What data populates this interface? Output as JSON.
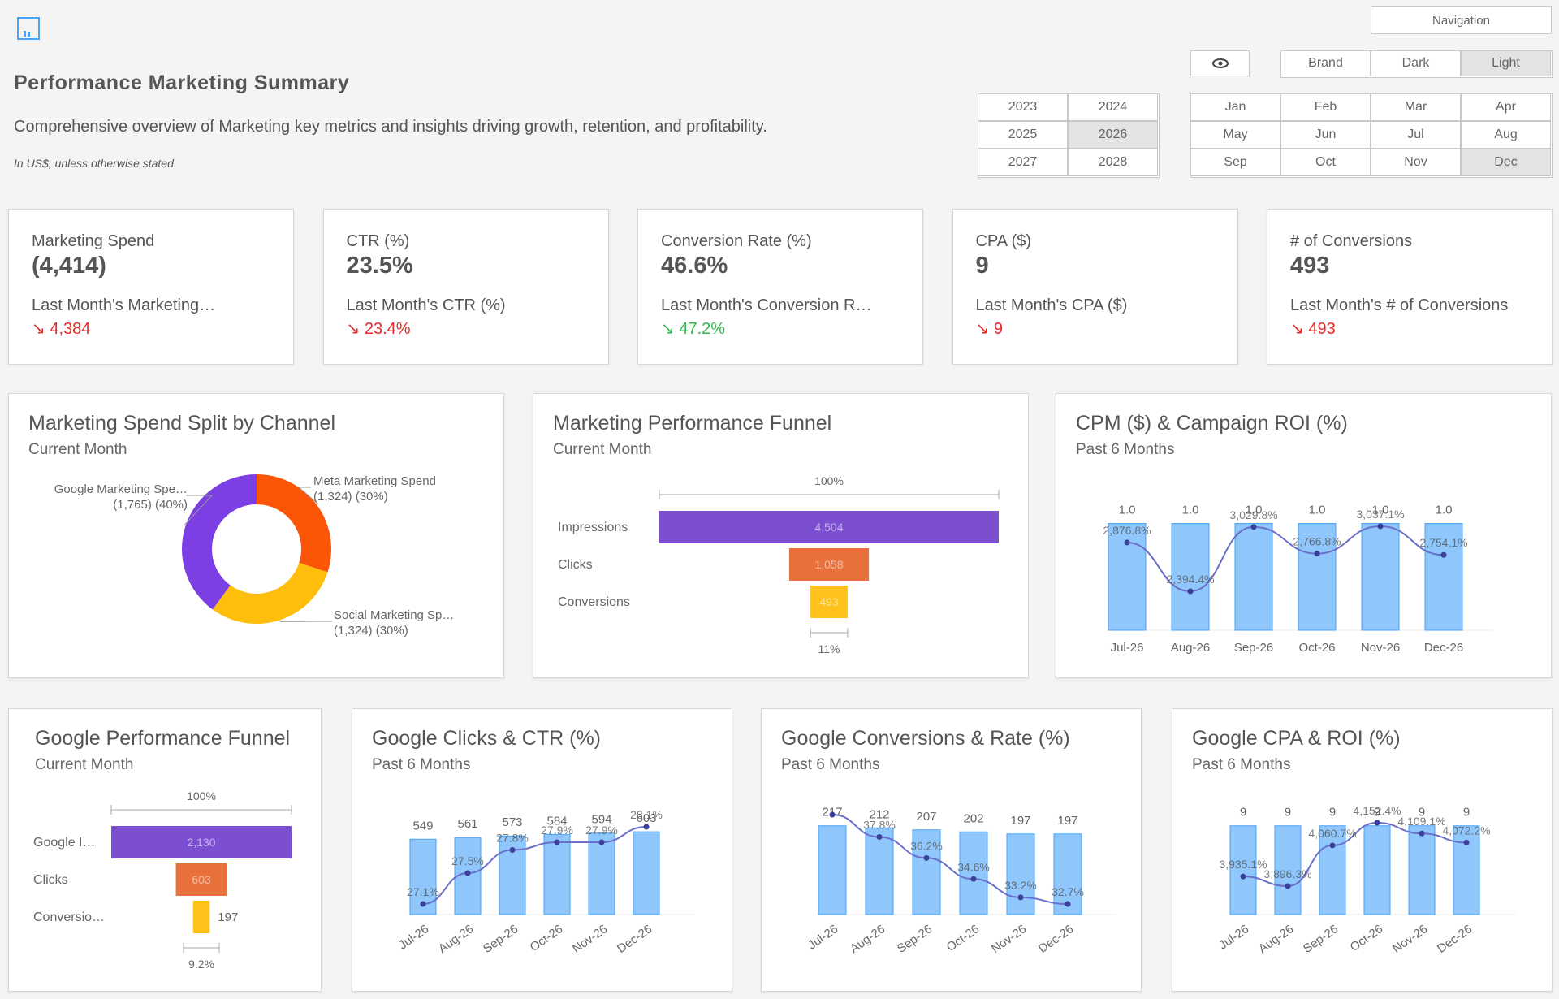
{
  "header": {
    "title": "Performance Marketing Summary",
    "subtitle": "Comprehensive overview of Marketing key metrics and insights driving growth, retention, and profitability.",
    "note": "In US$, unless otherwise stated.",
    "navigation_label": "Navigation",
    "eye_icon": "eye-icon",
    "app_icon": "report-icon"
  },
  "themes": {
    "options": [
      "Brand",
      "Dark",
      "Light"
    ],
    "selected": "Light"
  },
  "years": {
    "options": [
      "2023",
      "2024",
      "2025",
      "2026",
      "2027",
      "2028"
    ],
    "selected": "2026"
  },
  "months": {
    "options": [
      "Jan",
      "Feb",
      "Mar",
      "Apr",
      "May",
      "Jun",
      "Jul",
      "Aug",
      "Sep",
      "Oct",
      "Nov",
      "Dec"
    ],
    "selected": "Dec"
  },
  "kpis": [
    {
      "label": "Marketing Spend",
      "value": "(4,414)",
      "last_label": "Last Month's Marketing…",
      "last_value": "4,384",
      "arrow": "↘",
      "trend": "neg"
    },
    {
      "label": "CTR (%)",
      "value": "23.5%",
      "last_label": "Last Month's CTR (%)",
      "last_value": "23.4%",
      "arrow": "↘",
      "trend": "neg"
    },
    {
      "label": "Conversion Rate (%)",
      "value": "46.6%",
      "last_label": "Last Month's Conversion R…",
      "last_value": "47.2%",
      "arrow": "↘",
      "trend": "pos"
    },
    {
      "label": "CPA ($)",
      "value": "9",
      "last_label": "Last Month's CPA ($)",
      "last_value": "9",
      "arrow": "↘",
      "trend": "neg"
    },
    {
      "label": "# of Conversions",
      "value": "493",
      "last_label": "Last Month's # of Conversions",
      "last_value": "493",
      "arrow": "↘",
      "trend": "neg"
    }
  ],
  "colors": {
    "purple": "#7b3fe4",
    "orange": "#fb5607",
    "yellow": "#ffbe0b",
    "bar_fill": "#8fc6fb",
    "bar_stroke": "#4aa3f5",
    "line": "#6a70c9",
    "funnel_purple": "#7b4fd0",
    "funnel_orange": "#e8703a",
    "funnel_yellow": "#ffc21a"
  },
  "cards": {
    "spend_split": {
      "title": "Marketing Spend Split by Channel",
      "subtitle": "Current Month"
    },
    "funnel": {
      "title": "Marketing Performance Funnel",
      "subtitle": "Current Month"
    },
    "cpm_roi": {
      "title": "CPM ($) & Campaign ROI (%)",
      "subtitle": "Past 6 Months"
    },
    "google_funnel": {
      "title": "Google Performance Funnel",
      "subtitle": "Current Month"
    },
    "google_clicks": {
      "title": "Google Clicks & CTR (%)",
      "subtitle": "Past 6 Months"
    },
    "google_conv": {
      "title": "Google Conversions & Rate (%)",
      "subtitle": "Past 6 Months"
    },
    "google_cpa": {
      "title": "Google CPA & ROI (%)",
      "subtitle": "Past 6 Months"
    }
  },
  "chart_data": [
    {
      "id": "spend_split",
      "type": "pie",
      "title": "Marketing Spend Split by Channel",
      "labels": [
        "Google Marketing Spe…",
        "Meta Marketing Spend",
        "Social Marketing Sp…"
      ],
      "values": [
        1765,
        1324,
        1324
      ],
      "value_labels": [
        "(1,765) (40%)",
        "(1,324) (30%)",
        "(1,324) (30%)"
      ],
      "percent": [
        40,
        30,
        30
      ],
      "colors": [
        "#7b3fe4",
        "#fb5607",
        "#ffbe0b"
      ]
    },
    {
      "id": "funnel",
      "type": "bar",
      "title": "Marketing Performance Funnel",
      "categories": [
        "Impressions",
        "Clicks",
        "Conversions"
      ],
      "values": [
        4504,
        1058,
        493
      ],
      "value_labels": [
        "4,504",
        "1,058",
        "493"
      ],
      "top_label": "100%",
      "bottom_label": "11%"
    },
    {
      "id": "cpm_roi",
      "type": "bar",
      "title": "CPM ($) & Campaign ROI (%)",
      "categories": [
        "Jul-26",
        "Aug-26",
        "Sep-26",
        "Oct-26",
        "Nov-26",
        "Dec-26"
      ],
      "series": [
        {
          "name": "CPM ($)",
          "type": "bar",
          "values": [
            1.0,
            1.0,
            1.0,
            1.0,
            1.0,
            1.0
          ],
          "labels": [
            "1.0",
            "1.0",
            "1.0",
            "1.0",
            "1.0",
            "1.0"
          ]
        },
        {
          "name": "Campaign ROI (%)",
          "type": "line",
          "values": [
            2876.8,
            2394.4,
            3029.8,
            2766.8,
            3037.1,
            2754.1
          ],
          "labels": [
            "2,876.8%",
            "2,394.4%",
            "3,029.8%",
            "2,766.8%",
            "3,037.1%",
            "2,754.1%"
          ]
        }
      ]
    },
    {
      "id": "google_funnel",
      "type": "bar",
      "title": "Google Performance Funnel",
      "categories": [
        "Google I…",
        "Clicks",
        "Conversio…"
      ],
      "values": [
        2130,
        603,
        197
      ],
      "value_labels": [
        "2,130",
        "603",
        "197"
      ],
      "top_label": "100%",
      "bottom_label": "9.2%"
    },
    {
      "id": "google_clicks",
      "type": "bar",
      "title": "Google Clicks & CTR (%)",
      "categories": [
        "Jul-26",
        "Aug-26",
        "Sep-26",
        "Oct-26",
        "Nov-26",
        "Dec-26"
      ],
      "series": [
        {
          "name": "Clicks",
          "type": "bar",
          "values": [
            549,
            561,
            573,
            584,
            594,
            603
          ],
          "labels": [
            "549",
            "561",
            "573",
            "584",
            "594",
            "603"
          ]
        },
        {
          "name": "CTR (%)",
          "type": "line",
          "values": [
            27.1,
            27.5,
            27.8,
            27.9,
            27.9,
            28.1
          ],
          "labels": [
            "27.1%",
            "27.5%",
            "27.8%",
            "27.9%",
            "27.9%",
            "28.1%"
          ]
        }
      ]
    },
    {
      "id": "google_conv",
      "type": "bar",
      "title": "Google Conversions & Rate (%)",
      "categories": [
        "Jul-26",
        "Aug-26",
        "Sep-26",
        "Oct-26",
        "Nov-26",
        "Dec-26"
      ],
      "series": [
        {
          "name": "Conversions",
          "type": "bar",
          "values": [
            217,
            212,
            207,
            202,
            197,
            197
          ],
          "labels": [
            "217",
            "212",
            "207",
            "202",
            "197",
            "197"
          ]
        },
        {
          "name": "Rate (%)",
          "type": "line",
          "values": [
            39.5,
            37.8,
            36.2,
            34.6,
            33.2,
            32.7
          ],
          "labels": [
            "",
            "37.8%",
            "36.2%",
            "34.6%",
            "33.2%",
            "32.7%"
          ]
        }
      ]
    },
    {
      "id": "google_cpa",
      "type": "bar",
      "title": "Google CPA & ROI (%)",
      "categories": [
        "Jul-26",
        "Aug-26",
        "Sep-26",
        "Oct-26",
        "Nov-26",
        "Dec-26"
      ],
      "series": [
        {
          "name": "CPA",
          "type": "bar",
          "values": [
            9,
            9,
            9,
            9,
            9,
            9
          ],
          "labels": [
            "9",
            "9",
            "9",
            "9",
            "9",
            "9"
          ]
        },
        {
          "name": "ROI (%)",
          "type": "line",
          "values": [
            3935.1,
            3896.3,
            4060.7,
            4152.4,
            4109.1,
            4072.2
          ],
          "labels": [
            "3,935.1%",
            "3,896.3%",
            "4,060.7%",
            "4,152.4%",
            "4,109.1%",
            "4,072.2%"
          ]
        }
      ]
    }
  ]
}
